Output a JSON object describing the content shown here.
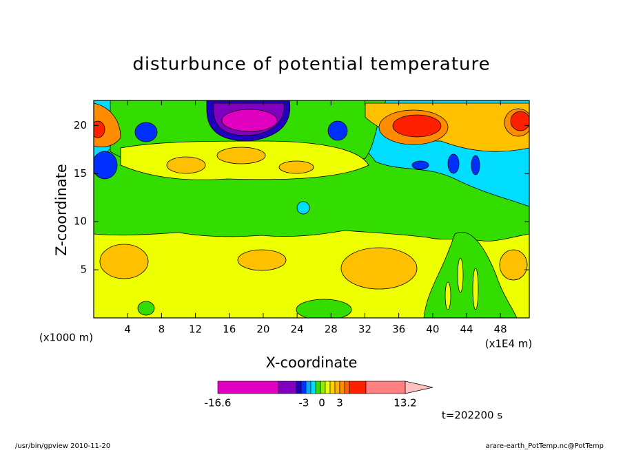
{
  "chart_data": {
    "type": "contour",
    "title": "disturbunce of potential temperature",
    "x_label": "X-coordinate",
    "y_label": "Z-coordinate",
    "x_unit_left": "(x1000 m)",
    "x_unit_right": "(x1E4 m)",
    "xlim": [
      0,
      51.4
    ],
    "ylim": [
      0,
      22.6
    ],
    "xticks": [
      4,
      8,
      12,
      16,
      20,
      24,
      28,
      32,
      36,
      40,
      44,
      48
    ],
    "yticks": [
      5,
      10,
      15,
      20
    ],
    "colorbar_ticks": [
      -16.6,
      -3,
      0,
      3,
      13.2
    ],
    "time_label": "t=202200 s",
    "footer_left": "/usr/bin/gpview   2010-11-20",
    "footer_right": "arare-earth_PotTemp.nc@PotTemp"
  }
}
